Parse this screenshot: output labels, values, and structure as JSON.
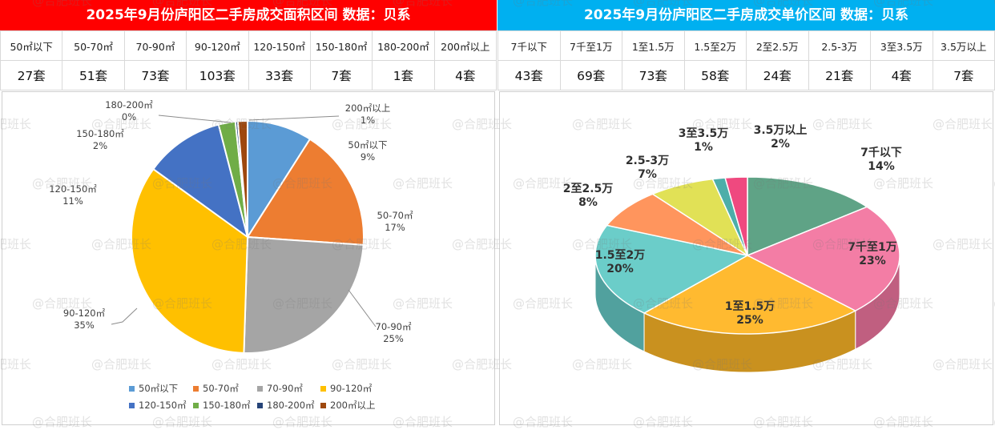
{
  "left": {
    "title": "2025年9月份庐阳区二手房成交面积区间 数据：贝系",
    "title_color": "#ff0000",
    "table": {
      "headers": [
        "50㎡以下",
        "50-70㎡",
        "70-90㎡",
        "90-120㎡",
        "120-150㎡",
        "150-180㎡",
        "180-200㎡",
        "200㎡以上"
      ],
      "values": [
        "27套",
        "51套",
        "73套",
        "103套",
        "33套",
        "7套",
        "1套",
        "4套"
      ]
    }
  },
  "right": {
    "title": "2025年9月份庐阳区二手房成交单价区间 数据：贝系",
    "title_color": "#00b0f0",
    "table": {
      "headers": [
        "7千以下",
        "7千至1万",
        "1至1.5万",
        "1.5至2万",
        "2至2.5万",
        "2.5-3万",
        "3至3.5万",
        "3.5万以上"
      ],
      "values": [
        "43套",
        "69套",
        "73套",
        "58套",
        "24套",
        "21套",
        "4套",
        "7套"
      ]
    }
  },
  "watermark": "@合肥班长",
  "chart_data": [
    {
      "type": "pie",
      "title": "",
      "categories": [
        "50㎡以下",
        "50-70㎡",
        "70-90㎡",
        "90-120㎡",
        "120-150㎡",
        "150-180㎡",
        "180-200㎡",
        "200㎡以上"
      ],
      "values": [
        27,
        51,
        73,
        103,
        33,
        7,
        1,
        4
      ],
      "percent_labels": [
        "9%",
        "17%",
        "25%",
        "35%",
        "11%",
        "2%",
        "0%",
        "1%"
      ],
      "colors": [
        "#5b9bd5",
        "#ed7d31",
        "#a5a5a5",
        "#ffc000",
        "#4472c4",
        "#70ad47",
        "#264478",
        "#9e480e"
      ],
      "legend_position": "bottom"
    },
    {
      "type": "pie",
      "title": "",
      "style": "3d",
      "categories": [
        "7千以下",
        "7千至1万",
        "1至1.5万",
        "1.5至2万",
        "2至2.5万",
        "2.5-3万",
        "3至3.5万",
        "3.5万以上"
      ],
      "values": [
        43,
        69,
        73,
        58,
        24,
        21,
        4,
        7
      ],
      "percent_labels": [
        "14%",
        "23%",
        "25%",
        "20%",
        "8%",
        "7%",
        "1%",
        "2%"
      ],
      "colors": [
        "#4e9a7a",
        "#f2709c",
        "#ffb31a",
        "#5cc8c4",
        "#ff8a4c",
        "#dede44",
        "#3aa6a0",
        "#ee3672"
      ],
      "legend_position": "none"
    }
  ]
}
